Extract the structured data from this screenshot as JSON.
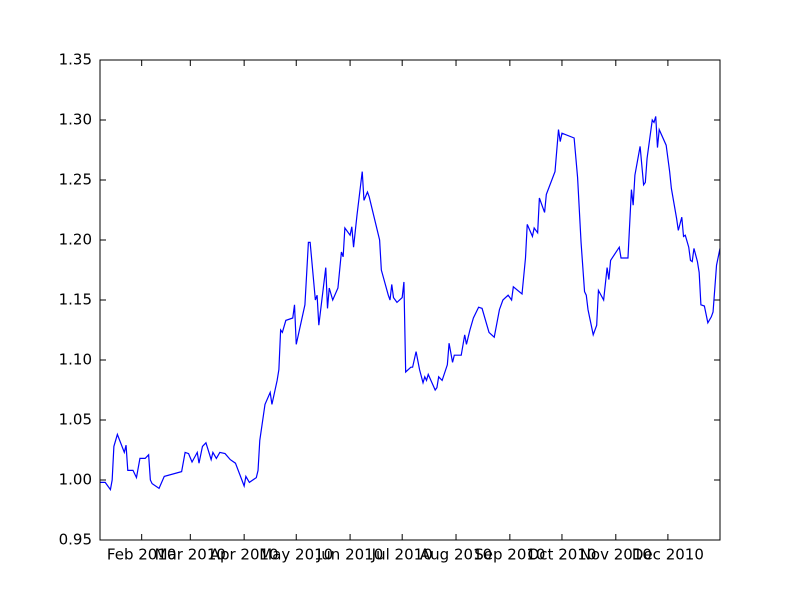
{
  "chart_data": {
    "type": "line",
    "x": [
      7,
      10,
      13,
      14,
      15,
      17,
      21,
      22,
      23,
      26,
      28,
      30,
      33,
      35,
      36,
      37,
      41,
      44,
      54,
      56,
      58,
      60,
      63,
      64,
      66,
      68,
      71,
      72,
      74,
      76,
      79,
      82,
      85,
      90,
      91,
      93,
      97,
      98,
      99,
      102,
      105,
      106,
      109,
      110,
      111,
      112,
      114,
      118,
      119,
      120,
      125,
      127,
      128,
      131,
      132,
      133,
      137,
      138,
      139,
      141,
      144,
      146,
      147,
      148,
      151,
      152,
      153,
      155,
      158,
      159,
      161,
      162,
      168,
      169,
      173,
      174,
      175,
      176,
      178,
      181,
      182,
      183,
      186,
      187,
      189,
      191,
      193,
      194,
      195,
      196,
      200,
      201,
      202,
      204,
      207,
      208,
      210,
      211,
      215,
      217,
      218,
      220,
      222,
      225,
      227,
      229,
      231,
      234,
      237,
      239,
      242,
      244,
      245,
      250,
      252,
      253,
      256,
      257,
      259,
      260,
      263,
      264,
      269,
      271,
      272,
      273,
      280,
      282,
      284,
      286,
      287,
      288,
      291,
      293,
      294,
      297,
      299,
      300,
      301,
      306,
      307,
      311,
      313,
      314,
      315,
      318,
      320,
      321,
      322,
      325,
      326,
      327,
      328,
      329,
      333,
      335,
      336,
      339,
      340,
      342,
      343,
      344,
      346,
      347,
      348,
      349,
      351,
      352,
      353,
      355,
      357,
      359,
      360,
      362,
      364
    ],
    "series": [
      {
        "color": "#0000ff",
        "values": [
          0.998,
          0.998,
          0.992,
          1.0,
          1.028,
          1.038,
          1.023,
          1.029,
          1.008,
          1.008,
          1.002,
          1.018,
          1.018,
          1.021,
          1.0,
          0.997,
          0.993,
          1.003,
          1.007,
          1.023,
          1.022,
          1.015,
          1.023,
          1.014,
          1.028,
          1.031,
          1.017,
          1.023,
          1.018,
          1.023,
          1.022,
          1.017,
          1.014,
          0.995,
          1.003,
          0.998,
          1.002,
          1.008,
          1.033,
          1.063,
          1.073,
          1.063,
          1.083,
          1.092,
          1.125,
          1.123,
          1.133,
          1.135,
          1.146,
          1.113,
          1.146,
          1.198,
          1.198,
          1.15,
          1.154,
          1.129,
          1.177,
          1.143,
          1.16,
          1.15,
          1.16,
          1.19,
          1.186,
          1.21,
          1.204,
          1.211,
          1.194,
          1.221,
          1.257,
          1.233,
          1.24,
          1.236,
          1.2,
          1.175,
          1.154,
          1.15,
          1.163,
          1.152,
          1.148,
          1.152,
          1.165,
          1.09,
          1.094,
          1.094,
          1.107,
          1.092,
          1.081,
          1.086,
          1.083,
          1.088,
          1.075,
          1.077,
          1.086,
          1.083,
          1.096,
          1.114,
          1.098,
          1.104,
          1.104,
          1.121,
          1.113,
          1.125,
          1.135,
          1.144,
          1.143,
          1.133,
          1.123,
          1.119,
          1.142,
          1.15,
          1.154,
          1.15,
          1.161,
          1.155,
          1.185,
          1.213,
          1.203,
          1.21,
          1.206,
          1.235,
          1.223,
          1.238,
          1.257,
          1.292,
          1.282,
          1.289,
          1.285,
          1.252,
          1.198,
          1.157,
          1.154,
          1.142,
          1.121,
          1.129,
          1.158,
          1.15,
          1.177,
          1.167,
          1.183,
          1.194,
          1.185,
          1.185,
          1.242,
          1.229,
          1.254,
          1.278,
          1.246,
          1.248,
          1.268,
          1.3,
          1.298,
          1.303,
          1.277,
          1.292,
          1.279,
          1.257,
          1.243,
          1.218,
          1.208,
          1.219,
          1.203,
          1.204,
          1.194,
          1.183,
          1.182,
          1.193,
          1.182,
          1.173,
          1.146,
          1.145,
          1.131,
          1.136,
          1.14,
          1.179,
          1.193
        ]
      }
    ],
    "xlim": [
      7,
      364
    ],
    "xticks": [
      {
        "value": 31,
        "label": "Feb 2010"
      },
      {
        "value": 59,
        "label": "Mar 2010"
      },
      {
        "value": 90,
        "label": "Apr 2010"
      },
      {
        "value": 120,
        "label": "May 2010"
      },
      {
        "value": 151,
        "label": "Jun 2010"
      },
      {
        "value": 181,
        "label": "Jul 2010"
      },
      {
        "value": 212,
        "label": "Aug 2010"
      },
      {
        "value": 243,
        "label": "Sep 2010"
      },
      {
        "value": 273,
        "label": "Oct 2010"
      },
      {
        "value": 304,
        "label": "Nov 2010"
      },
      {
        "value": 334,
        "label": "Dec 2010"
      }
    ],
    "ylim": [
      0.95,
      1.35
    ],
    "yticks": [
      0.95,
      {
        "value": 1.0,
        "label": "1.00"
      },
      1.05,
      {
        "value": 1.1,
        "label": "1.10"
      },
      1.15,
      {
        "value": 1.2,
        "label": "1.20"
      },
      1.25,
      {
        "value": 1.3,
        "label": "1.30"
      },
      1.35
    ]
  }
}
